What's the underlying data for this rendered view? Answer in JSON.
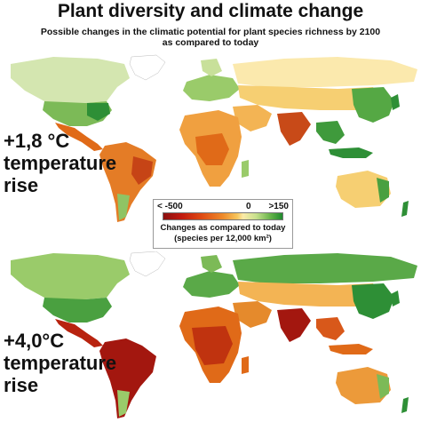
{
  "header": {
    "title": "Plant diversity and climate change",
    "subtitle_line1": "Possible changes in the climatic potential for plant species richness by 2100",
    "subtitle_line2": "as compared to today"
  },
  "scenarios": [
    {
      "line1": "+1,8 °C",
      "line2": "temperature",
      "line3": "rise"
    },
    {
      "line1": "+4,0°C",
      "line2": "temperature",
      "line3": "rise"
    }
  ],
  "legend": {
    "min_label": "< -500",
    "zero_label": "0",
    "max_label": ">150",
    "caption_line1": "Changes as compared to today",
    "caption_line2": "(species per 12,000 km²)"
  },
  "colors": {
    "strong_loss": "#a3170f",
    "loss": "#e06a18",
    "moderate_loss": "#f0a040",
    "slight_loss": "#f6cf72",
    "neutral": "#fbe9ad",
    "gain": "#9acb6a",
    "strong_gain": "#2e8f36",
    "pale_gain": "#d4e6b0"
  }
}
